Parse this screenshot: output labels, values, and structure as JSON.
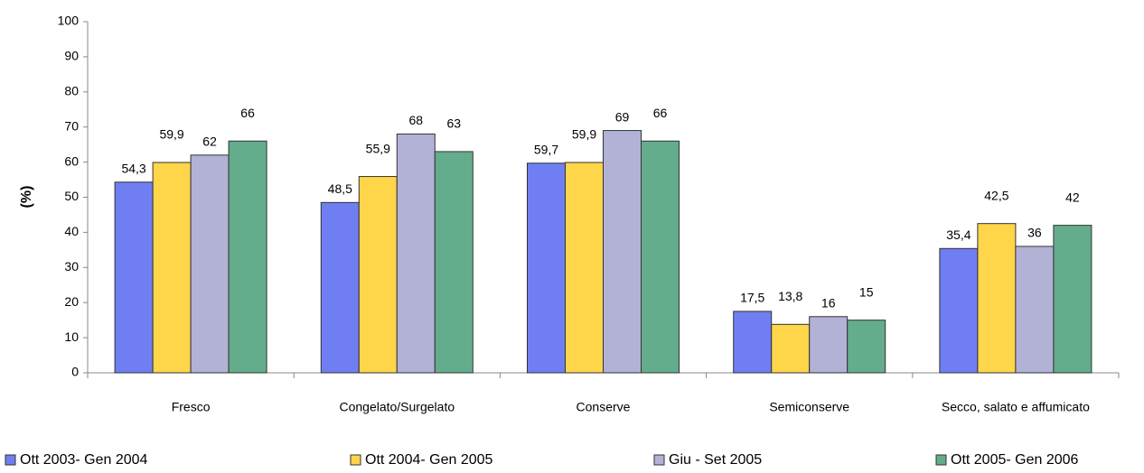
{
  "chart_data": {
    "type": "bar",
    "y_label": "(%)",
    "categories": [
      "Fresco",
      "Congelato/Surgelato",
      "Conserve",
      "Semiconserve",
      "Secco, salato e affumicato"
    ],
    "series": [
      {
        "name": "Ott 2003- Gen 2004",
        "color": "#6f7ff2",
        "values": [
          54.3,
          48.5,
          59.7,
          17.5,
          35.4
        ],
        "value_labels": [
          "54,3",
          "48,5",
          "59,7",
          "17,5",
          "35,4"
        ]
      },
      {
        "name": "Ott 2004- Gen 2005",
        "color": "#ffd54a",
        "values": [
          59.9,
          55.9,
          59.9,
          13.8,
          42.5
        ],
        "value_labels": [
          "59,9",
          "55,9",
          "59,9",
          "13,8",
          "42,5"
        ]
      },
      {
        "name": "Giu - Set 2005",
        "color": "#b2b2d6",
        "values": [
          62,
          68,
          69,
          16,
          36
        ],
        "value_labels": [
          "62",
          "68",
          "69",
          "16",
          "36"
        ]
      },
      {
        "name": "Ott 2005- Gen 2006",
        "color": "#63ad8c",
        "values": [
          66,
          63,
          66,
          15,
          42
        ],
        "value_labels": [
          "66",
          "63",
          "66",
          "15",
          "42"
        ]
      }
    ],
    "ylim": [
      0,
      100
    ],
    "yticks": [
      0,
      10,
      20,
      30,
      40,
      50,
      60,
      70,
      80,
      90,
      100
    ],
    "legend": "bottom"
  }
}
